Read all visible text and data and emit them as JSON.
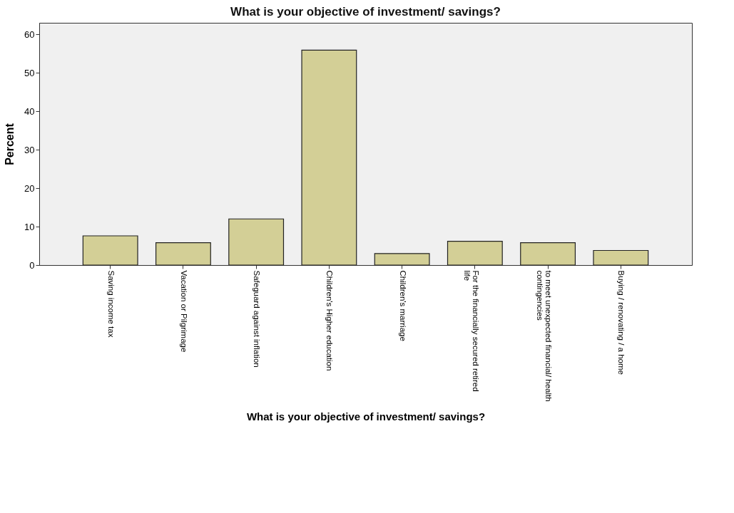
{
  "chart_data": {
    "type": "bar",
    "title": "What is your objective of investment/ savings?",
    "xlabel": "What is your objective of investment/ savings?",
    "ylabel": "Percent",
    "categories": [
      "Saving income tax",
      "Vacation or Pilgrimage",
      "Safeguard against inflation",
      "Children's Higher education",
      "Children's marriage",
      "For the financially secured retired life",
      "to meet unexpected financial/ health contingencies",
      "Buying / renovating / a home"
    ],
    "values": [
      7.6,
      5.8,
      12,
      55.9,
      3,
      6.2,
      5.8,
      3.8
    ],
    "color": "#d3cf96",
    "ylim": [
      0,
      63
    ],
    "yticks": [
      0,
      10,
      20,
      30,
      40,
      50,
      60
    ],
    "grid": false
  }
}
